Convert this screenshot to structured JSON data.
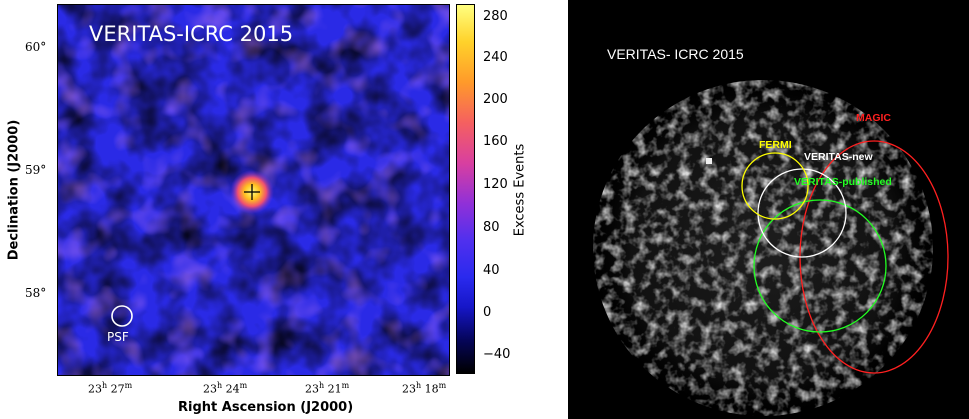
{
  "left_panel": {
    "title": "VERITAS-ICRC 2015",
    "y_axis_title": "Declination (J2000)",
    "x_axis_title": "Right Ascension (J2000)",
    "y_ticks": [
      "60°",
      "59°",
      "58°"
    ],
    "x_ticks": [
      {
        "h": "23",
        "m": "27"
      },
      {
        "h": "23",
        "m": "24"
      },
      {
        "h": "23",
        "m": "21"
      },
      {
        "h": "23",
        "m": "18"
      }
    ],
    "psf_label": "PSF",
    "colorbar": {
      "label": "Excess Events",
      "ticks": [
        "280",
        "240",
        "200",
        "160",
        "120",
        "80",
        "40",
        "0",
        "−40"
      ]
    }
  },
  "right_panel": {
    "title": "VERITAS- ICRC 2015",
    "regions": [
      {
        "label": "MAGIC",
        "color": "#ff2020"
      },
      {
        "label": "FERMI",
        "color": "#ffff00"
      },
      {
        "label": "VERITAS-new",
        "color": "#ffffff"
      },
      {
        "label": "VERITAS-published",
        "color": "#22ff22"
      }
    ]
  }
}
